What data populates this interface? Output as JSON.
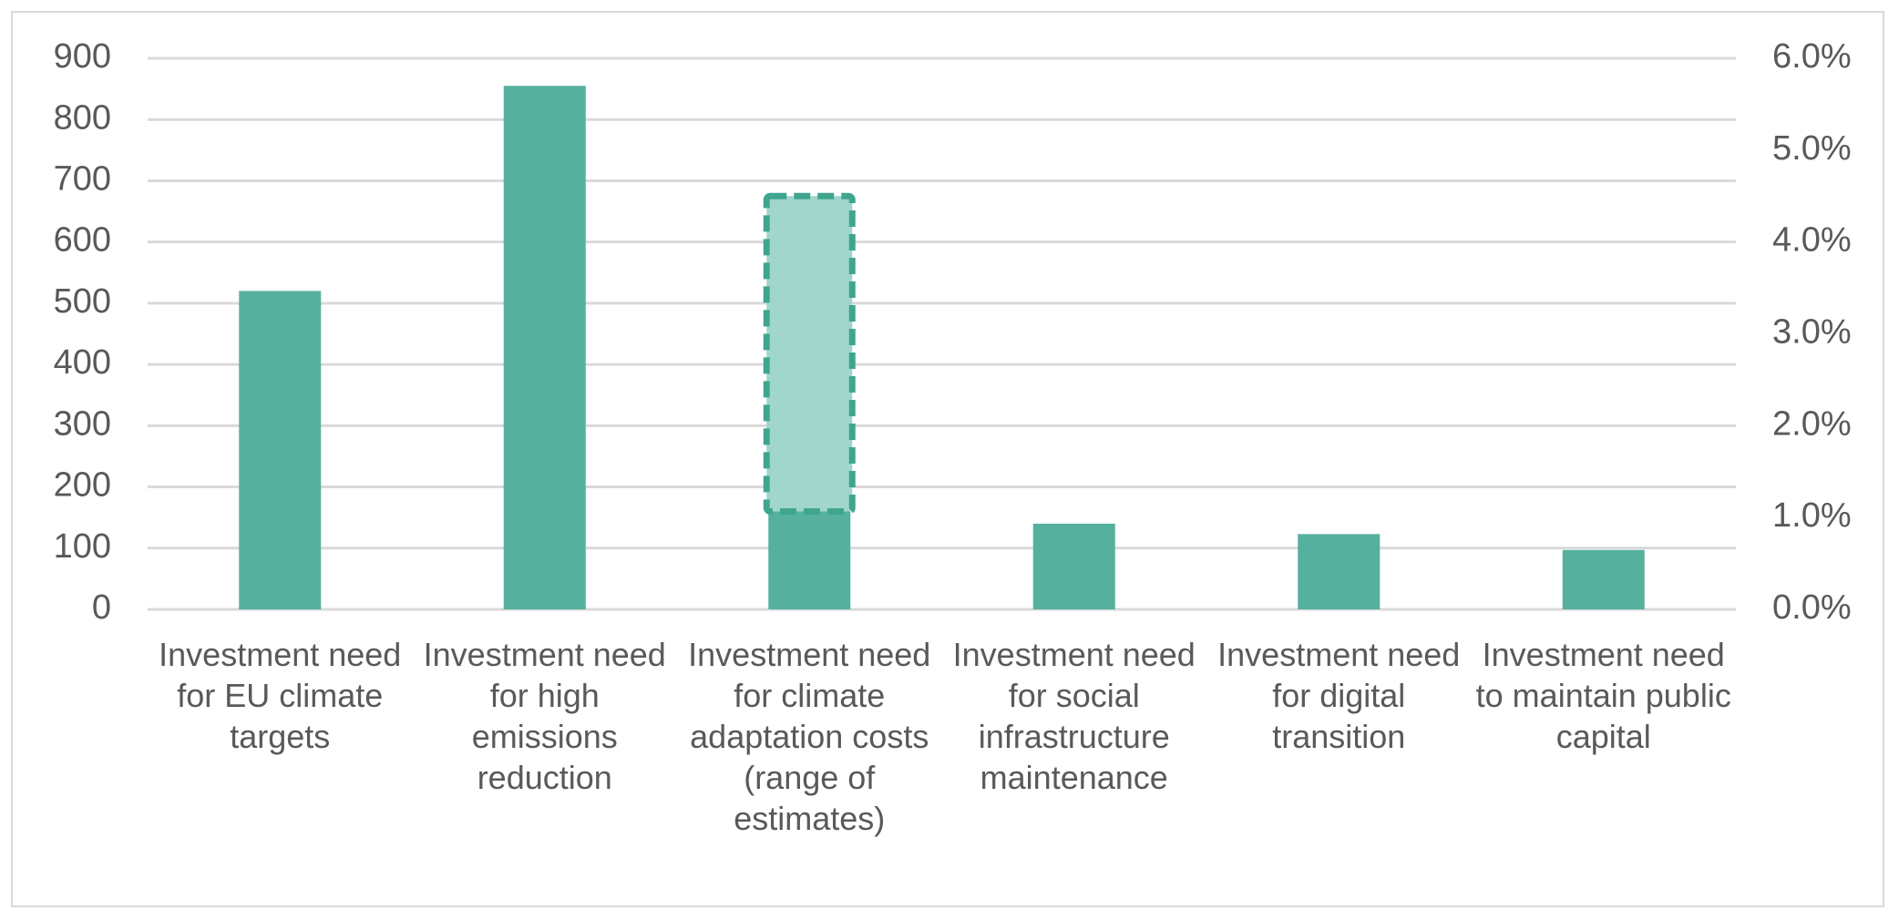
{
  "chart_data": {
    "type": "bar",
    "categories": [
      "Investment need for EU climate targets",
      "Investment need for high emissions reduction",
      "Investment need for climate adaptation costs (range of estimates)",
      "Investment need for social infrastructure maintenance",
      "Investment need for digital transition",
      "Investment need to maintain public capital"
    ],
    "values": [
      520,
      855,
      160,
      140,
      123,
      97
    ],
    "ranges": [
      null,
      null,
      [
        160,
        675
      ],
      null,
      null,
      null
    ],
    "color": "#56b09e",
    "range_color": "#a0d6cc",
    "range_stroke": "#3fa58f",
    "ylim": [
      0,
      900
    ],
    "yticks": [
      0,
      100,
      200,
      300,
      400,
      500,
      600,
      700,
      800,
      900
    ],
    "y2lim": [
      0,
      6
    ],
    "y2ticks": [
      {
        "value": 0,
        "label": "0.0%"
      },
      {
        "value": 1,
        "label": "1.0%"
      },
      {
        "value": 2,
        "label": "2.0%"
      },
      {
        "value": 3,
        "label": "3.0%"
      },
      {
        "value": 4,
        "label": "4.0%"
      },
      {
        "value": 5,
        "label": "5.0%"
      },
      {
        "value": 6,
        "label": "6.0%"
      }
    ],
    "grid": true
  }
}
